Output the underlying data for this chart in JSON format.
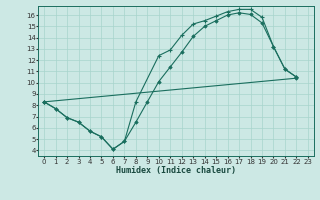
{
  "xlabel": "Humidex (Indice chaleur)",
  "bg_color": "#cce8e4",
  "grid_color": "#a8d4cc",
  "line_color": "#1a6e5e",
  "xlim": [
    -0.5,
    23.5
  ],
  "ylim": [
    3.5,
    16.8
  ],
  "xticks": [
    0,
    1,
    2,
    3,
    4,
    5,
    6,
    7,
    8,
    9,
    10,
    11,
    12,
    13,
    14,
    15,
    16,
    17,
    18,
    19,
    20,
    21,
    22,
    23
  ],
  "yticks": [
    4,
    5,
    6,
    7,
    8,
    9,
    10,
    11,
    12,
    13,
    14,
    15,
    16
  ],
  "line1_y": [
    8.3,
    7.7,
    6.9,
    6.5,
    5.7,
    5.2,
    4.1,
    4.8,
    6.5,
    8.3,
    10.1,
    11.4,
    12.7,
    14.1,
    15.0,
    15.5,
    16.0,
    16.2,
    16.05,
    15.3,
    13.2,
    11.2,
    10.5,
    null
  ],
  "line2_y": [
    8.3,
    7.7,
    6.9,
    6.5,
    5.7,
    5.2,
    4.1,
    4.8,
    8.3,
    null,
    12.4,
    12.9,
    14.2,
    15.2,
    15.5,
    15.9,
    16.3,
    16.5,
    16.5,
    15.8,
    13.2,
    11.2,
    10.5,
    null
  ],
  "line3_x": [
    0,
    22
  ],
  "line3_y": [
    8.3,
    10.4
  ]
}
